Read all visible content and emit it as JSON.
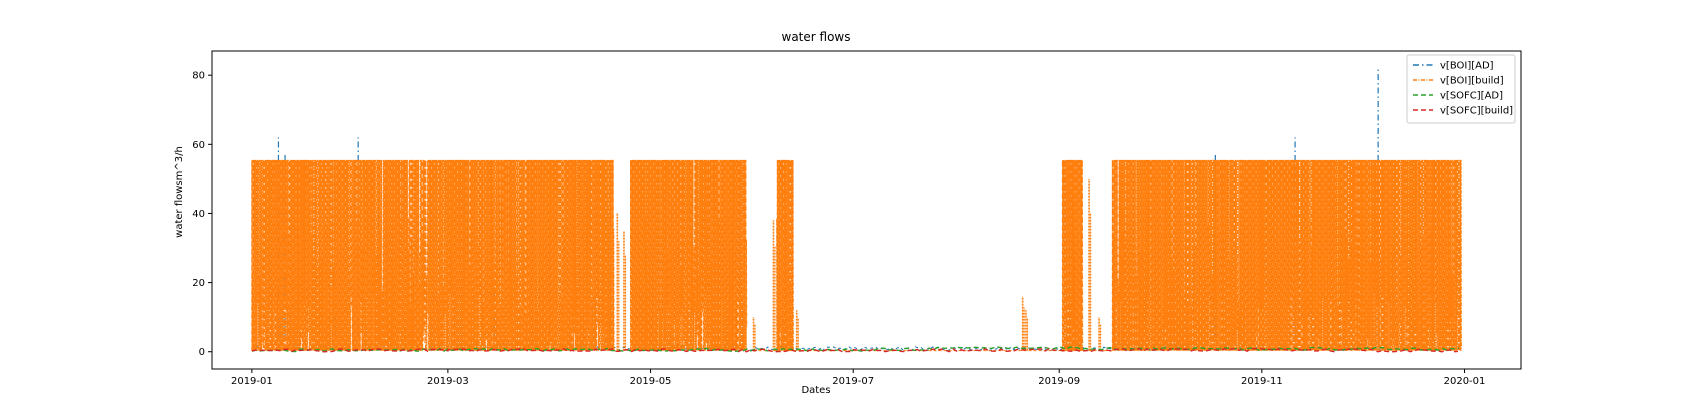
{
  "chart_data": {
    "type": "line",
    "title": "water flows",
    "xlabel": "Dates",
    "ylabel": "water flowsm^3/h",
    "xlim": [
      "2018-12-20",
      "2020-01-18"
    ],
    "ylim": [
      -5,
      87
    ],
    "x_ticks": [
      "2019-01",
      "2019-03",
      "2019-05",
      "2019-07",
      "2019-09",
      "2019-11",
      "2020-01"
    ],
    "y_ticks": [
      0,
      20,
      40,
      60,
      80
    ],
    "legend_position": "top-right",
    "grid": false,
    "series": [
      {
        "name": "v[BOI][AD]",
        "color": "#1f77b4",
        "style": "dashdot-sparse",
        "points": [
          {
            "x": "2019-01-01",
            "y": 0.5
          },
          {
            "x": "2019-01-02",
            "y": 1.2
          },
          {
            "x": "2019-01-09",
            "y": 62
          },
          {
            "x": "2019-01-10",
            "y": 0.8
          },
          {
            "x": "2019-01-11",
            "y": 57
          },
          {
            "x": "2019-01-12",
            "y": 0.6
          },
          {
            "x": "2019-01-26",
            "y": 14
          },
          {
            "x": "2019-01-27",
            "y": 0.7
          },
          {
            "x": "2019-02-02",
            "y": 62
          },
          {
            "x": "2019-02-03",
            "y": 0.9
          },
          {
            "x": "2019-03-15",
            "y": 18
          },
          {
            "x": "2019-03-16",
            "y": 0.6
          },
          {
            "x": "2019-05-20",
            "y": 2
          },
          {
            "x": "2019-06-12",
            "y": 1
          },
          {
            "x": "2019-09-15",
            "y": 2
          },
          {
            "x": "2019-10-18",
            "y": 57
          },
          {
            "x": "2019-10-19",
            "y": 0.8
          },
          {
            "x": "2019-11-11",
            "y": 62
          },
          {
            "x": "2019-11-12",
            "y": 0.7
          },
          {
            "x": "2019-12-06",
            "y": 82
          },
          {
            "x": "2019-12-07",
            "y": 1
          },
          {
            "x": "2019-12-31",
            "y": 0.6
          }
        ]
      },
      {
        "name": "v[BOI][build]",
        "color": "#ff7f0e",
        "style": "dashdot-dense",
        "blocks": [
          {
            "start": "2019-01-01",
            "end": "2019-04-20",
            "y": 55.5
          },
          {
            "start": "2019-04-25",
            "end": "2019-05-30",
            "y": 55.5
          },
          {
            "start": "2019-06-08",
            "end": "2019-06-13",
            "y": 55.5
          },
          {
            "start": "2019-09-02",
            "end": "2019-09-08",
            "y": 55.5
          },
          {
            "start": "2019-09-17",
            "end": "2019-12-31",
            "y": 55.5
          }
        ],
        "spikes": [
          {
            "x": "2019-04-21",
            "y": 40
          },
          {
            "x": "2019-04-23",
            "y": 35
          },
          {
            "x": "2019-05-25",
            "y": 30
          },
          {
            "x": "2019-06-01",
            "y": 10
          },
          {
            "x": "2019-06-07",
            "y": 38
          },
          {
            "x": "2019-06-14",
            "y": 12
          },
          {
            "x": "2019-08-21",
            "y": 16
          },
          {
            "x": "2019-08-22",
            "y": 12
          },
          {
            "x": "2019-09-10",
            "y": 50
          },
          {
            "x": "2019-09-13",
            "y": 10
          },
          {
            "x": "2019-09-20",
            "y": 45
          }
        ],
        "baseline": 0.3
      },
      {
        "name": "v[SOFC][AD]",
        "color": "#2ca02c",
        "style": "dashed",
        "points": [
          {
            "x": "2019-01-01",
            "y": 0.4
          },
          {
            "x": "2019-04-01",
            "y": 0.6
          },
          {
            "x": "2019-06-15",
            "y": 0.5
          },
          {
            "x": "2019-07-01",
            "y": 0.5
          },
          {
            "x": "2019-08-01",
            "y": 1.0
          },
          {
            "x": "2019-08-25",
            "y": 1.2
          },
          {
            "x": "2019-09-03",
            "y": 1.0
          },
          {
            "x": "2019-10-01",
            "y": 0.8
          },
          {
            "x": "2019-12-31",
            "y": 0.8
          }
        ]
      },
      {
        "name": "v[SOFC][build]",
        "color": "#d62728",
        "style": "dashed",
        "points": [
          {
            "x": "2019-01-01",
            "y": 0.3
          },
          {
            "x": "2019-03-01",
            "y": 0.5
          },
          {
            "x": "2019-05-01",
            "y": 0.4
          },
          {
            "x": "2019-07-01",
            "y": 0.3
          },
          {
            "x": "2019-09-01",
            "y": 0.5
          },
          {
            "x": "2019-11-01",
            "y": 0.5
          },
          {
            "x": "2019-12-31",
            "y": 0.3
          }
        ]
      }
    ]
  }
}
